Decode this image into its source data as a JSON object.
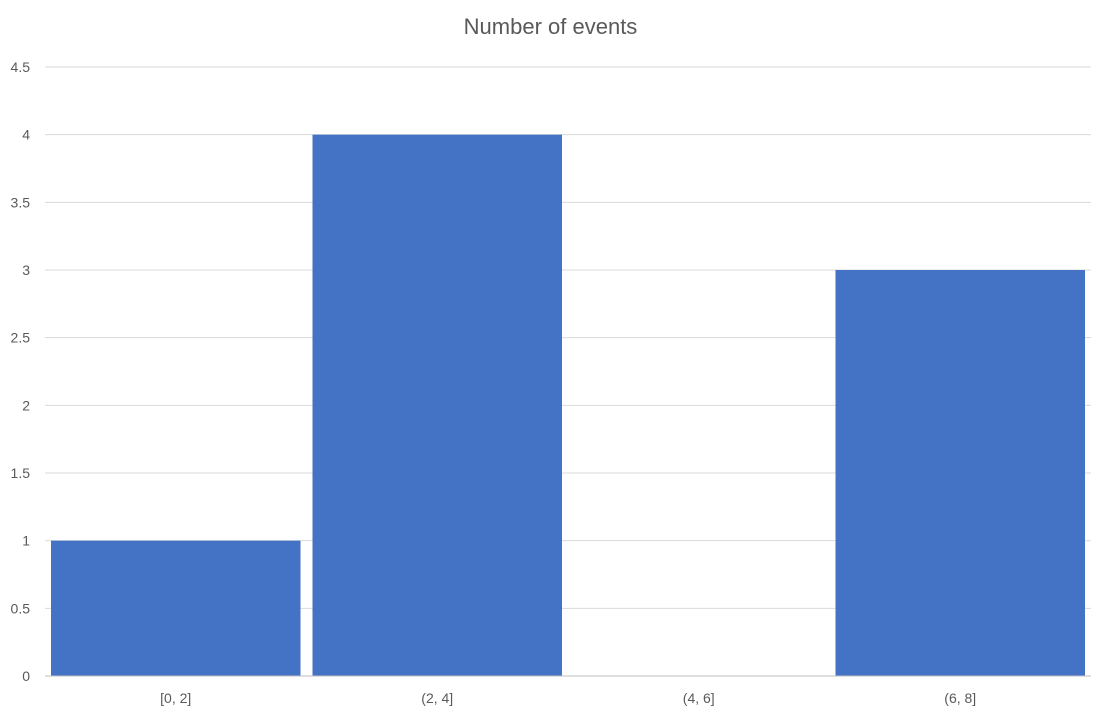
{
  "chart_data": {
    "type": "bar",
    "title": "Number of events",
    "categories": [
      "[0, 2]",
      "(2, 4]",
      "(4, 6]",
      "(6, 8]"
    ],
    "values": [
      1,
      4,
      0,
      3
    ],
    "ylim": [
      0,
      4.5
    ],
    "yticks": [
      "0",
      "0.5",
      "1",
      "1.5",
      "2",
      "2.5",
      "3",
      "3.5",
      "4",
      "4.5"
    ],
    "ytick_values": [
      0,
      0.5,
      1,
      1.5,
      2,
      2.5,
      3,
      3.5,
      4,
      4.5
    ],
    "xlabel": "",
    "ylabel": "",
    "grid": true,
    "legend": "none",
    "colors": {
      "bar": "#4472C4",
      "grid": "#D9D9D9",
      "axis": "#BFBFBF",
      "text": "#595959"
    }
  }
}
